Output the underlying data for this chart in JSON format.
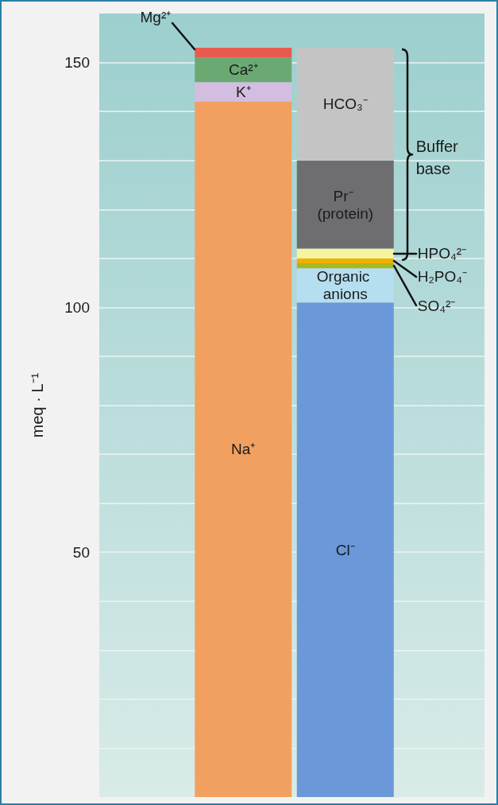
{
  "chart_data": {
    "type": "bar",
    "stacked": true,
    "ylabel": "meq · L⁻¹",
    "categories": [
      null,
      null
    ],
    "ylim": [
      0,
      160
    ],
    "yticks": [
      {
        "value": 10,
        "label": null
      },
      {
        "value": 20,
        "label": null
      },
      {
        "value": 30,
        "label": null
      },
      {
        "value": 40,
        "label": null
      },
      50,
      {
        "value": 60,
        "label": null
      },
      {
        "value": 70,
        "label": null
      },
      {
        "value": 80,
        "label": null
      },
      {
        "value": 90,
        "label": null
      },
      100,
      {
        "value": 110,
        "label": null
      },
      {
        "value": 120,
        "label": null
      },
      {
        "value": 130,
        "label": null
      },
      {
        "value": 140,
        "label": null
      },
      150
    ],
    "grid": "y",
    "annotations": [
      "Buffer base"
    ],
    "series": [
      {
        "name": "Na⁺",
        "color": "#f2a060",
        "values": [
          142,
          null
        ]
      },
      {
        "name": "K⁺",
        "color": "#d3bde0",
        "values": [
          4,
          null
        ]
      },
      {
        "name": "Ca²⁺",
        "color": "#6aaa72",
        "values": [
          5,
          null
        ]
      },
      {
        "name": "Mg²⁺",
        "color": "#e85a50",
        "values": [
          2,
          null
        ]
      },
      {
        "name": "Cl⁻",
        "color": "#6a98d8",
        "values": [
          null,
          101
        ]
      },
      {
        "name": "Organic anions",
        "color": "#b5def0",
        "values": [
          null,
          7
        ]
      },
      {
        "name": "SO₄²⁻",
        "color": "#a8b820",
        "values": [
          null,
          1
        ]
      },
      {
        "name": "H₂PO₄⁻",
        "color": "#f0b000",
        "values": [
          null,
          1
        ]
      },
      {
        "name": "HPO₄²⁻",
        "color": "#f6f4a0",
        "values": [
          null,
          2
        ]
      },
      {
        "name": "Pr⁻ (protein)",
        "color": "#6e6e70",
        "values": [
          null,
          18
        ]
      },
      {
        "name": "HCO₃⁻",
        "color": "#c4c4c4",
        "values": [
          null,
          23
        ]
      }
    ]
  }
}
